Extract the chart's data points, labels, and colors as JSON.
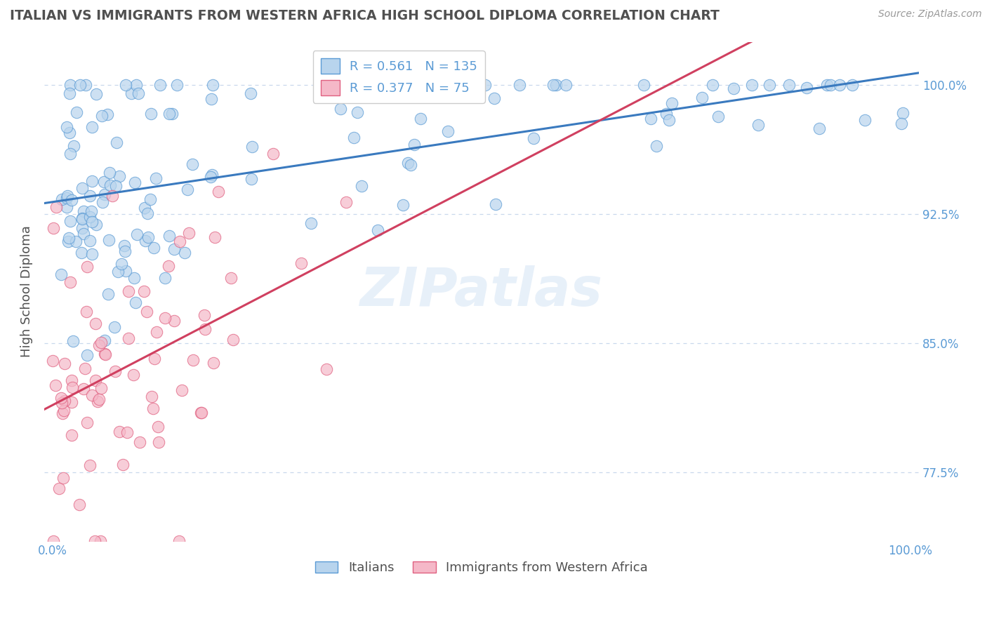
{
  "title": "ITALIAN VS IMMIGRANTS FROM WESTERN AFRICA HIGH SCHOOL DIPLOMA CORRELATION CHART",
  "source": "Source: ZipAtlas.com",
  "ylabel": "High School Diploma",
  "xlim": [
    -0.01,
    1.01
  ],
  "ylim": [
    0.735,
    1.025
  ],
  "yticks": [
    0.775,
    0.85,
    0.925,
    1.0
  ],
  "ytick_labels": [
    "77.5%",
    "85.0%",
    "92.5%",
    "100.0%"
  ],
  "xtick_labels": [
    "0.0%",
    "",
    "",
    "",
    "",
    "",
    "",
    "",
    "",
    "",
    "100.0%"
  ],
  "blue_R": 0.561,
  "blue_N": 135,
  "pink_R": 0.377,
  "pink_N": 75,
  "blue_color": "#b8d4ed",
  "pink_color": "#f5b8c8",
  "blue_edge_color": "#5b9bd5",
  "pink_edge_color": "#e06080",
  "blue_line_color": "#3a7abf",
  "pink_line_color": "#d04060",
  "legend_label_blue": "Italians",
  "legend_label_pink": "Immigrants from Western Africa",
  "watermark": "ZIPatlas",
  "background_color": "#ffffff",
  "title_color": "#505050",
  "axis_label_color": "#505050",
  "tick_color": "#5b9bd5",
  "grid_color": "#c8d8ec"
}
